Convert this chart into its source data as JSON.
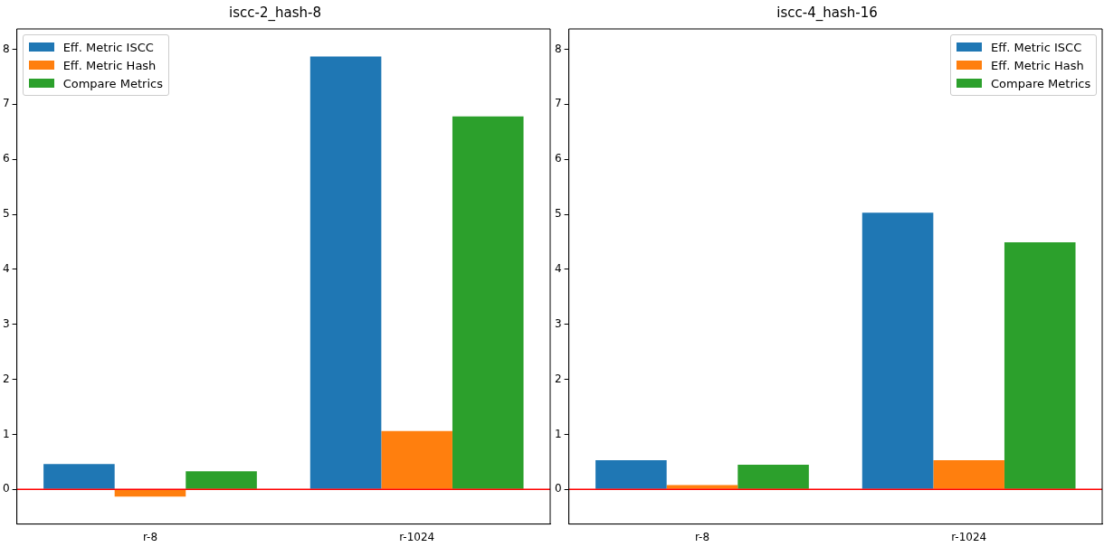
{
  "chart_data": [
    {
      "type": "bar",
      "title": "iscc-2_hash-8",
      "categories": [
        "r-8",
        "r-1024"
      ],
      "series": [
        {
          "name": "Eff. Metric ISCC",
          "color": "#1f77b4",
          "values": [
            0.46,
            7.87
          ]
        },
        {
          "name": "Eff. Metric Hash",
          "color": "#ff7f0e",
          "values": [
            -0.13,
            1.06
          ]
        },
        {
          "name": "Compare Metrics",
          "color": "#2ca02c",
          "values": [
            0.33,
            6.78
          ]
        }
      ],
      "ylim": [
        -0.63,
        8.37
      ],
      "yticks": [
        0,
        1,
        2,
        3,
        4,
        5,
        6,
        7,
        8
      ],
      "grid": false,
      "legend": "top left",
      "ref_lines": [
        {
          "axis": "y",
          "value": 0,
          "color": "#ff0000"
        }
      ]
    },
    {
      "type": "bar",
      "title": "iscc-4_hash-16",
      "categories": [
        "r-8",
        "r-1024"
      ],
      "series": [
        {
          "name": "Eff. Metric ISCC",
          "color": "#1f77b4",
          "values": [
            0.53,
            5.03
          ]
        },
        {
          "name": "Eff. Metric Hash",
          "color": "#ff7f0e",
          "values": [
            0.08,
            0.53
          ]
        },
        {
          "name": "Compare Metrics",
          "color": "#2ca02c",
          "values": [
            0.45,
            4.49
          ]
        }
      ],
      "ylim": [
        -0.63,
        8.37
      ],
      "yticks": [
        0,
        1,
        2,
        3,
        4,
        5,
        6,
        7,
        8
      ],
      "grid": false,
      "legend": "top right",
      "ref_lines": [
        {
          "axis": "y",
          "value": 0,
          "color": "#ff0000"
        }
      ]
    }
  ]
}
